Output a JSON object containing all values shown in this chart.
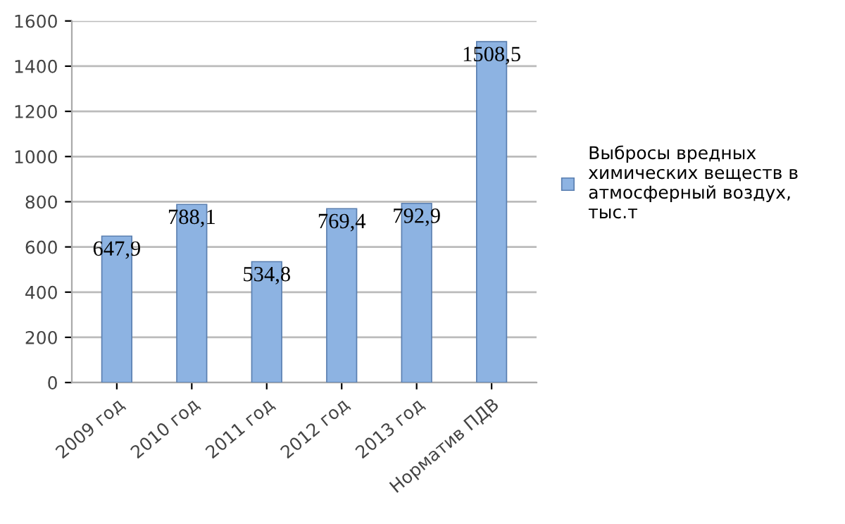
{
  "chart_data": {
    "type": "bar",
    "categories": [
      "2009 год",
      "2010 год",
      "2011 год",
      "2012 год",
      "2013 год",
      "Норматив ПДВ"
    ],
    "series": [
      {
        "name": "Выбросы вредных\nхимических веществ в\nатмосферный воздух,\nтыс.т",
        "color": "#8db3e2",
        "values": [
          647.9,
          788.1,
          534.8,
          769.4,
          792.9,
          1508.5
        ],
        "value_labels": [
          "647,9",
          "788,1",
          "534,8",
          "769,4",
          "792,9",
          "1508,5"
        ]
      }
    ],
    "ylim": [
      0,
      1600
    ],
    "yticks": [
      0,
      200,
      400,
      600,
      800,
      1000,
      1200,
      1400,
      1600
    ],
    "grid": "y",
    "legend": "right"
  }
}
